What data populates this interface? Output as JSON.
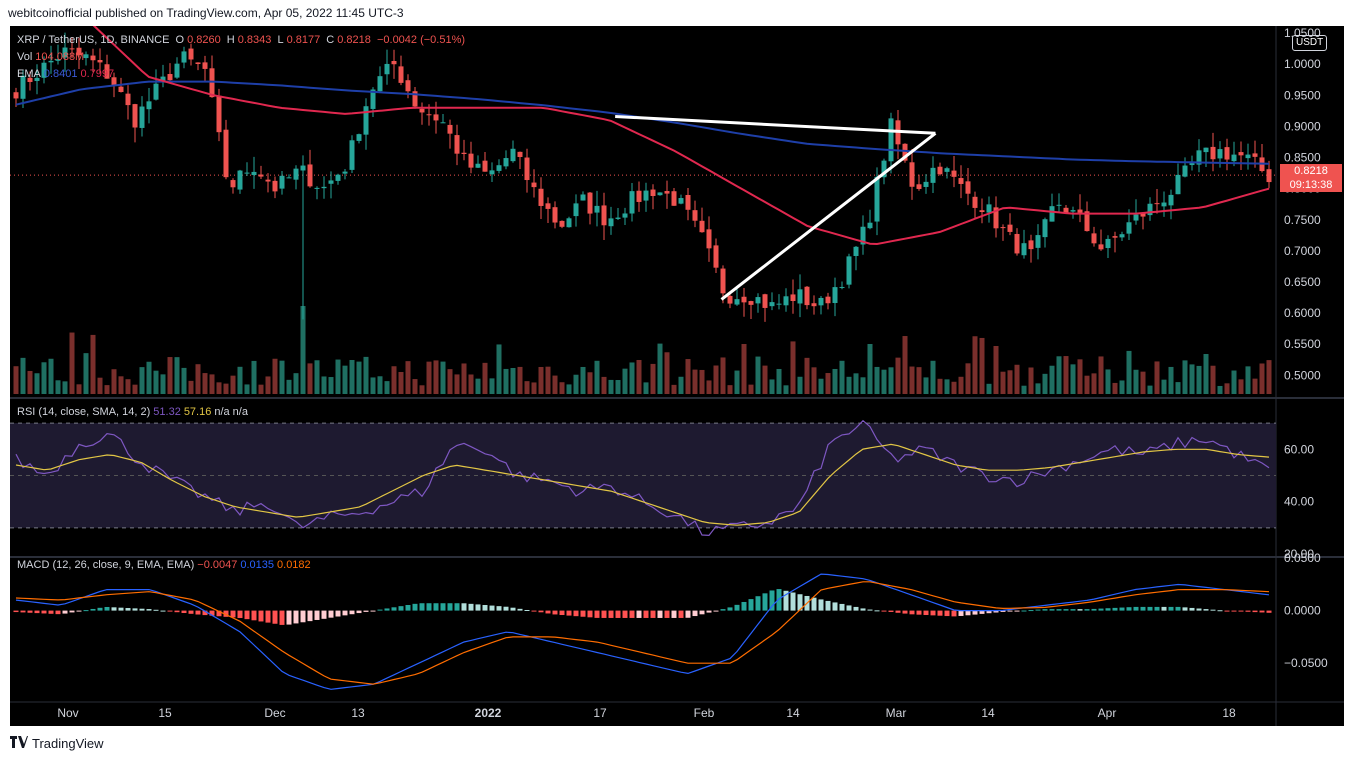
{
  "header": {
    "published": "webitcoinofficial published on TradingView.com, Apr 05, 2022 11:45 UTC-3"
  },
  "footer": {
    "brand": "TradingView"
  },
  "colors": {
    "up": "#26a69a",
    "down": "#ef5350",
    "ema_long": "#1e3fa8",
    "ema_short": "#e0284f",
    "rsi": "#7e57c2",
    "rsi_ma": "#e2c645",
    "macd": "#2962ff",
    "signal": "#ff6d00"
  },
  "legend": {
    "symbol": "XRP / TetherUS, 1D, BINANCE",
    "o_label": "O",
    "o_value": "0.8260",
    "h_label": "H",
    "h_value": "0.8343",
    "l_label": "L",
    "l_value": "0.8177",
    "c_label": "C",
    "c_value": "0.8218",
    "change": "−0.0042 (−0.51%)",
    "vol_label": "Vol",
    "vol_value": "104.088M",
    "ema_label": "EMA",
    "ema_v1": "0.8401",
    "ema_v2": "0.7997",
    "rsi_label": "RSI (14, close, SMA, 14, 2)",
    "rsi_v1": "51.32",
    "rsi_v2": "57.16",
    "rsi_v3": "n/a",
    "rsi_v4": "n/a",
    "macd_label": "MACD (12, 26, close, 9, EMA, EMA)",
    "macd_v1": "−0.0047",
    "macd_v2": "0.0135",
    "macd_v3": "0.0182"
  },
  "price_scale": {
    "currency": "USDT",
    "last_price": "0.8218",
    "countdown": "09:13:38"
  },
  "chart_data": {
    "type": "candlestick",
    "x_labels": [
      "Nov",
      "15",
      "Dec",
      "13",
      "2022",
      "17",
      "Feb",
      "14",
      "Mar",
      "14",
      "Apr",
      "18"
    ],
    "price_axis": {
      "ticks": [
        "1.0500",
        "1.0000",
        "0.9500",
        "0.9000",
        "0.8500",
        "0.8000",
        "0.7500",
        "0.7000",
        "0.6500",
        "0.6000",
        "0.5500",
        "0.5000"
      ],
      "ylim": [
        0.47,
        1.055
      ]
    },
    "rsi_axis": {
      "ticks": [
        "60.00",
        "40.00",
        "20.00"
      ],
      "ylim": [
        20,
        75
      ],
      "bands": [
        70,
        30,
        50
      ]
    },
    "macd_axis": {
      "ticks": [
        "0.0500",
        "0.0000",
        "−0.0500"
      ],
      "ylim": [
        -0.085,
        0.05
      ]
    },
    "close_anchors": [
      0.96,
      0.99,
      1.02,
      1.01,
      0.98,
      0.91,
      0.96,
      1.01,
      0.99,
      0.8,
      0.84,
      0.8,
      0.83,
      0.8,
      0.84,
      0.96,
      1.0,
      0.93,
      0.91,
      0.84,
      0.82,
      0.86,
      0.79,
      0.74,
      0.78,
      0.75,
      0.78,
      0.8,
      0.78,
      0.72,
      0.63,
      0.63,
      0.61,
      0.63,
      0.61,
      0.66,
      0.74,
      0.9,
      0.8,
      0.84,
      0.8,
      0.77,
      0.72,
      0.69,
      0.78,
      0.75,
      0.7,
      0.74,
      0.77,
      0.8,
      0.85,
      0.86,
      0.85,
      0.82
    ],
    "ema_long_anchors": [
      0.935,
      0.96,
      0.972,
      0.972,
      0.966,
      0.958,
      0.952,
      0.944,
      0.934,
      0.922,
      0.906,
      0.888,
      0.872,
      0.864,
      0.857,
      0.852,
      0.847,
      0.844,
      0.842,
      0.84
    ],
    "ema_short_anchors": [
      1.2,
      1.08,
      0.98,
      0.95,
      0.93,
      0.92,
      0.93,
      0.93,
      0.93,
      0.91,
      0.86,
      0.8,
      0.74,
      0.71,
      0.73,
      0.77,
      0.76,
      0.76,
      0.77,
      0.8
    ],
    "triangle": {
      "upper": [
        [
          0.478,
          0.916
        ],
        [
          0.731,
          0.889
        ]
      ],
      "lower": [
        [
          0.562,
          0.622
        ],
        [
          0.731,
          0.889
        ]
      ]
    }
  }
}
